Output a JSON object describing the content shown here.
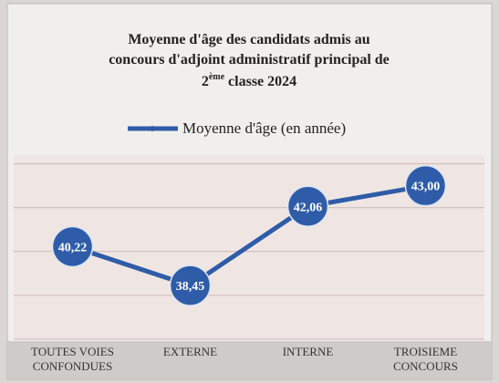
{
  "chart_data": {
    "type": "line",
    "title": [
      "Moyenne d'âge des candidats admis au",
      "concours d'adjoint administratif principal de",
      "2",
      "ème",
      " classe 2024"
    ],
    "categories": [
      "TOUTES VOIES CONFONDUES",
      "EXTERNE",
      "INTERNE",
      "TROISIEME CONCOURS"
    ],
    "series": [
      {
        "name": "Moyenne d'âge (en année)",
        "color": "#2f5ca8",
        "values": [
          40.22,
          38.45,
          42.06,
          43.0
        ],
        "value_labels": [
          "40,22",
          "38,45",
          "42,06",
          "43,00"
        ]
      }
    ],
    "ylim": [
      36,
      44.4
    ],
    "yticks": [
      36,
      38,
      40,
      42,
      44
    ],
    "grid": true,
    "legend": "top"
  }
}
